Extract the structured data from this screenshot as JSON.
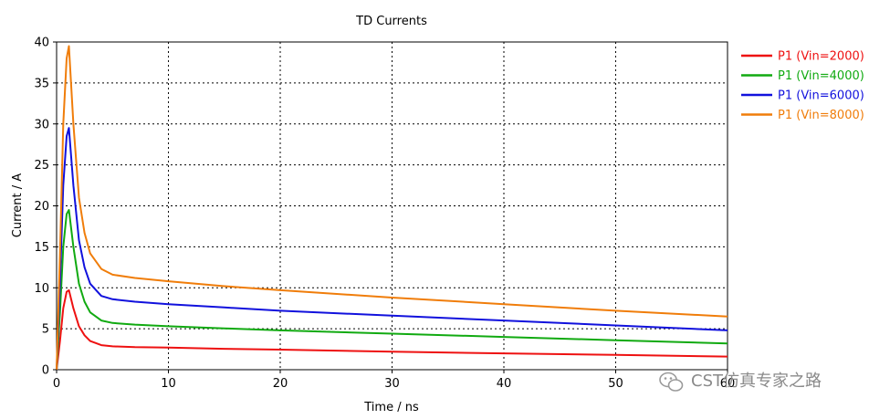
{
  "chart_data": {
    "type": "line",
    "title": "TD Currents",
    "xlabel": "Time / ns",
    "ylabel": "Current / A",
    "xlim": [
      0,
      60
    ],
    "ylim": [
      0,
      40
    ],
    "xticks": [
      0,
      10,
      20,
      30,
      40,
      50,
      60
    ],
    "yticks": [
      0,
      5,
      10,
      15,
      20,
      25,
      30,
      35,
      40
    ],
    "grid": true,
    "legend_position": "right",
    "series": [
      {
        "name": "P1 (Vin=2000)",
        "color": "#ee1111",
        "x": [
          0,
          0.3,
          0.6,
          0.9,
          1.1,
          1.5,
          2,
          2.5,
          3,
          4,
          5,
          7,
          10,
          15,
          20,
          30,
          40,
          50,
          60
        ],
        "y": [
          0,
          3.5,
          7.5,
          9.5,
          9.7,
          7.5,
          5.3,
          4.2,
          3.5,
          3.0,
          2.85,
          2.75,
          2.7,
          2.55,
          2.45,
          2.2,
          2.0,
          1.8,
          1.6
        ]
      },
      {
        "name": "P1 (Vin=4000)",
        "color": "#11aa11",
        "x": [
          0,
          0.3,
          0.6,
          0.9,
          1.1,
          1.5,
          2,
          2.5,
          3,
          4,
          5,
          7,
          10,
          15,
          20,
          30,
          40,
          50,
          60
        ],
        "y": [
          0,
          7,
          15,
          19,
          19.5,
          15,
          10.5,
          8.3,
          7.0,
          6.0,
          5.7,
          5.5,
          5.3,
          5.05,
          4.8,
          4.4,
          4.0,
          3.6,
          3.2
        ]
      },
      {
        "name": "P1 (Vin=6000)",
        "color": "#1111dd",
        "x": [
          0,
          0.3,
          0.6,
          0.9,
          1.1,
          1.5,
          2,
          2.5,
          3,
          4,
          5,
          7,
          10,
          15,
          20,
          30,
          40,
          50,
          60
        ],
        "y": [
          0,
          10.5,
          22.5,
          28.5,
          29.5,
          22.5,
          15.8,
          12.5,
          10.5,
          9.0,
          8.6,
          8.3,
          8.0,
          7.6,
          7.2,
          6.6,
          6.0,
          5.4,
          4.8
        ]
      },
      {
        "name": "P1 (Vin=8000)",
        "color": "#f07d0a",
        "x": [
          0,
          0.3,
          0.6,
          0.9,
          1.1,
          1.5,
          2,
          2.5,
          3,
          4,
          5,
          7,
          10,
          15,
          20,
          30,
          40,
          50,
          60
        ],
        "y": [
          0,
          14,
          30,
          38,
          39.5,
          30,
          21,
          16.7,
          14.2,
          12.3,
          11.6,
          11.2,
          10.8,
          10.2,
          9.7,
          8.8,
          8.0,
          7.2,
          6.5
        ]
      }
    ]
  },
  "watermark": {
    "text": "CST仿真专家之路",
    "icon": "wechat-icon"
  }
}
